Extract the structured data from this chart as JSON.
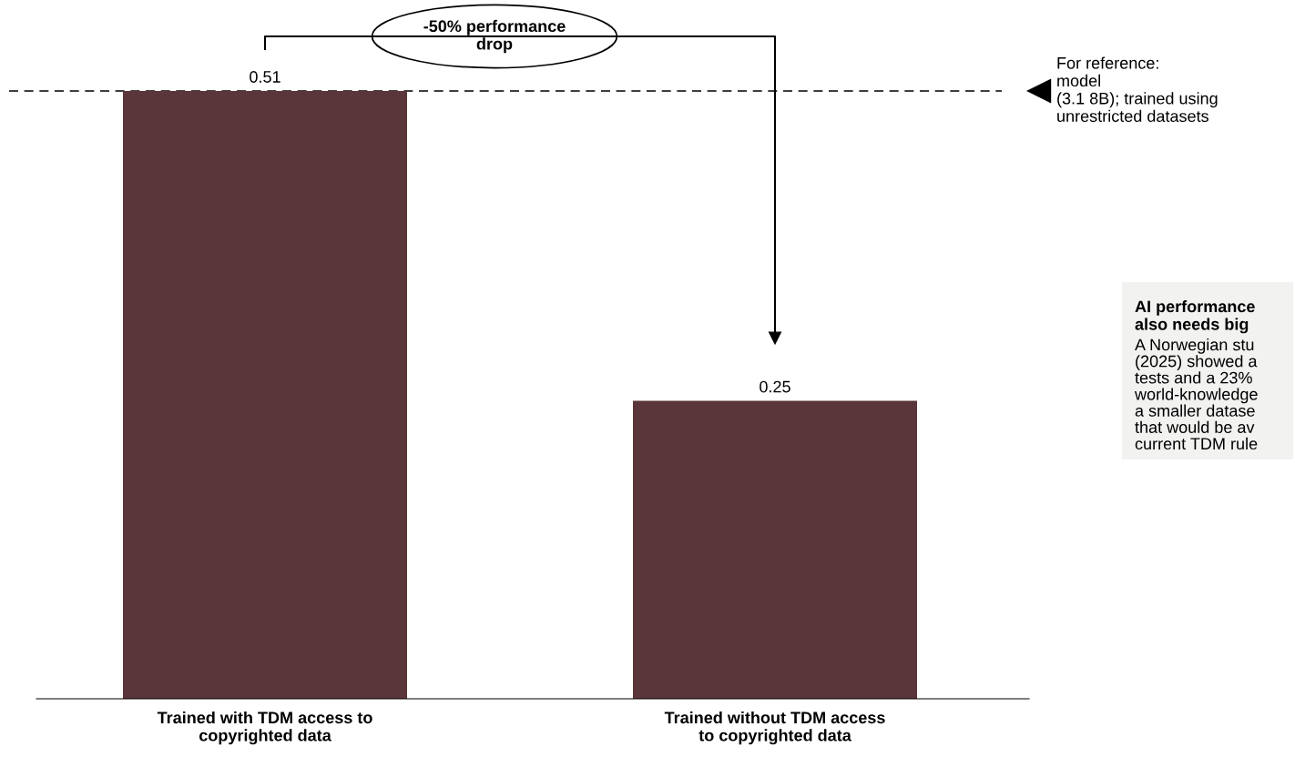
{
  "chart_data": {
    "type": "bar",
    "categories": [
      "Trained with TDM access to\ncopyrighted data",
      "Trained without TDM access\nto copyrighted data"
    ],
    "values": [
      0.51,
      0.25
    ],
    "color": "#5a3539",
    "data_labels": true,
    "grid": false,
    "ref_lines": [
      {
        "axis": "y",
        "value": 0.51,
        "label": "For reference:\nmodel\n(3.1 8B); trained using\nunrestricted datasets",
        "line_style": "dashed",
        "color": "#000000"
      }
    ],
    "annotations": [
      "-50% performance\ndrop",
      "AI performance\nalso needs big",
      "A Norwegian stu\n(2025) showed a\ntests and a 23%\nworld-knowledge\na smaller datase\nthat would be av\ncurrent TDM rule"
    ]
  }
}
